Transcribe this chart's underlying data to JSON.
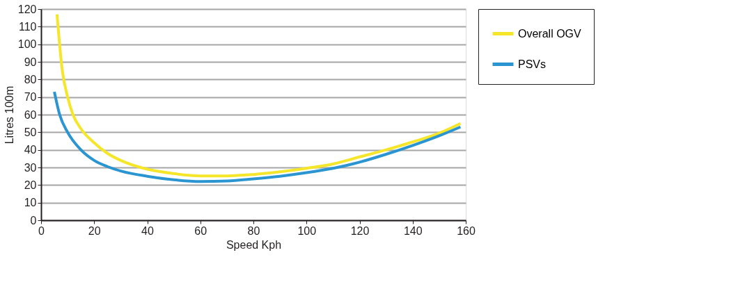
{
  "chart_data": {
    "type": "line",
    "xlabel": "Speed Kph",
    "ylabel": "Litres 100m",
    "xlim": [
      0,
      160
    ],
    "xticks": [
      0,
      20,
      40,
      60,
      80,
      100,
      120,
      140,
      160
    ],
    "ylim": [
      0,
      120
    ],
    "yticks": [
      0,
      10,
      20,
      30,
      40,
      50,
      60,
      70,
      80,
      90,
      100,
      110,
      120
    ],
    "grid": "y",
    "legend": "right",
    "marker": "none",
    "line_style": "solid",
    "series": [
      {
        "name": "Overall OGV",
        "color": "#f5e62a",
        "x": [
          6,
          8,
          10,
          12,
          15,
          20,
          25,
          30,
          40,
          50,
          60,
          70,
          80,
          90,
          100,
          110,
          120,
          130,
          140,
          150,
          158
        ],
        "values": [
          117,
          85,
          70,
          60,
          52,
          44,
          38,
          34,
          29,
          26.5,
          25.2,
          25.2,
          26,
          27.5,
          29.5,
          32,
          36,
          40,
          44.5,
          49.5,
          55
        ]
      },
      {
        "name": "PSVs",
        "color": "#2a95d0",
        "x": [
          5,
          7,
          10,
          15,
          20,
          25,
          30,
          40,
          50,
          60,
          70,
          80,
          90,
          100,
          110,
          120,
          130,
          140,
          150,
          158
        ],
        "values": [
          73,
          60,
          50,
          40,
          34,
          30.5,
          28,
          25,
          23,
          22,
          22.3,
          23.5,
          25,
          27,
          29.5,
          33,
          37.5,
          42.5,
          48,
          53
        ]
      }
    ]
  }
}
